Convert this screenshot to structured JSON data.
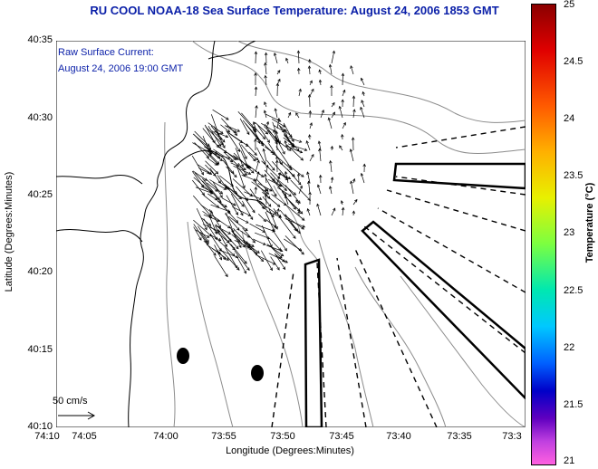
{
  "title": "RU COOL  NOAA-18  Sea Surface Temperature:  August 24, 2006 1853 GMT",
  "annotation": {
    "line1": "Raw Surface Current:",
    "line2": "August 24, 2006 19:00 GMT"
  },
  "axes": {
    "xlabel": "Longitude (Degrees:Minutes)",
    "ylabel": "Latitude (Degrees:Minutes)",
    "xticks": [
      "74:10",
      "74:05",
      "74:00",
      "73:55",
      "73:50",
      "73:45",
      "73:40",
      "73:35",
      "73:3"
    ],
    "yticks": [
      "40:35",
      "40:30",
      "40:25",
      "40:20",
      "40:15",
      "40:10"
    ]
  },
  "scale_label": "50 cm/s",
  "colorbar": {
    "label": "Temperature (°C)",
    "ticks": [
      "25",
      "24.5",
      "24",
      "23.5",
      "23",
      "22.5",
      "22",
      "21.5",
      "21"
    ],
    "range": [
      21,
      25
    ]
  },
  "colors": {
    "title": "#0a1fa8",
    "coast": "#000000",
    "bathymetry": "#8c8c8c",
    "vectors": "#000000"
  }
}
